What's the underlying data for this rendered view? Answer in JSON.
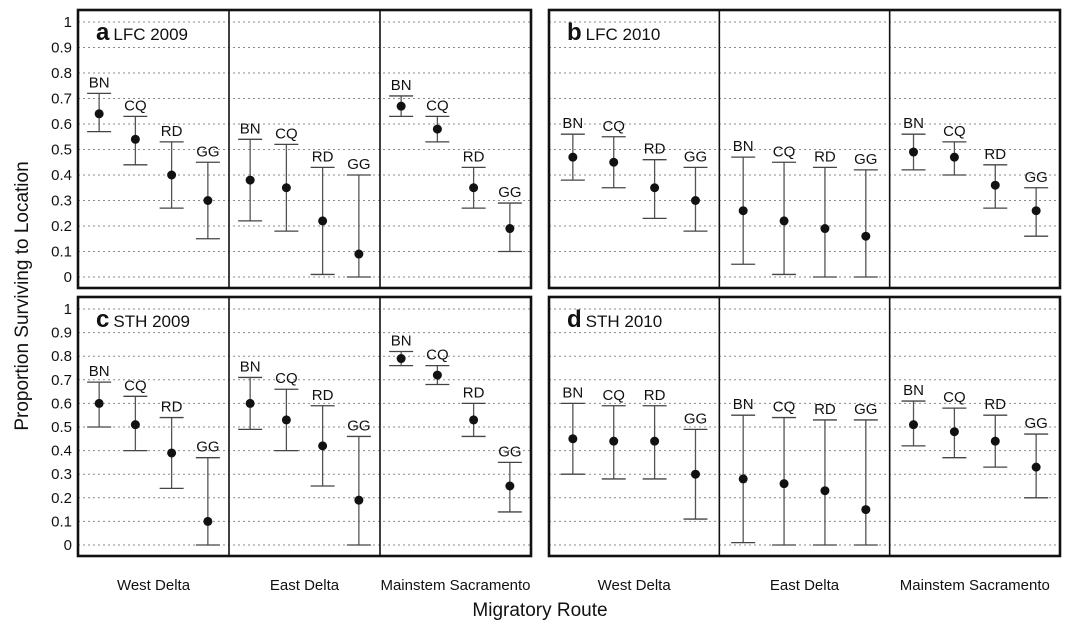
{
  "chart_data": {
    "type": "scatter",
    "xlabel": "Migratory Route",
    "ylabel": "Proportion Surviving to Location",
    "ylim": [
      0,
      1
    ],
    "yticks": [
      "0",
      "0.1",
      "0.2",
      "0.3",
      "0.4",
      "0.5",
      "0.6",
      "0.7",
      "0.8",
      "0.9",
      "1"
    ],
    "grid": true,
    "routes": [
      "West Delta",
      "East Delta",
      "Mainstem Sacramento"
    ],
    "sites": [
      "BN",
      "CQ",
      "RD",
      "GG"
    ],
    "panels": [
      {
        "letter": "a",
        "title": "LFC 2009",
        "series": [
          {
            "route": "West Delta",
            "points": [
              {
                "site": "BN",
                "estimate": 0.64,
                "lower": 0.57,
                "upper": 0.72
              },
              {
                "site": "CQ",
                "estimate": 0.54,
                "lower": 0.44,
                "upper": 0.63
              },
              {
                "site": "RD",
                "estimate": 0.4,
                "lower": 0.27,
                "upper": 0.53
              },
              {
                "site": "GG",
                "estimate": 0.3,
                "lower": 0.15,
                "upper": 0.45
              }
            ]
          },
          {
            "route": "East Delta",
            "points": [
              {
                "site": "BN",
                "estimate": 0.38,
                "lower": 0.22,
                "upper": 0.54
              },
              {
                "site": "CQ",
                "estimate": 0.35,
                "lower": 0.18,
                "upper": 0.52
              },
              {
                "site": "RD",
                "estimate": 0.22,
                "lower": 0.01,
                "upper": 0.43
              },
              {
                "site": "GG",
                "estimate": 0.09,
                "lower": 0.0,
                "upper": 0.4
              }
            ]
          },
          {
            "route": "Mainstem Sacramento",
            "points": [
              {
                "site": "BN",
                "estimate": 0.67,
                "lower": 0.63,
                "upper": 0.71
              },
              {
                "site": "CQ",
                "estimate": 0.58,
                "lower": 0.53,
                "upper": 0.63
              },
              {
                "site": "RD",
                "estimate": 0.35,
                "lower": 0.27,
                "upper": 0.43
              },
              {
                "site": "GG",
                "estimate": 0.19,
                "lower": 0.1,
                "upper": 0.29
              }
            ]
          }
        ]
      },
      {
        "letter": "b",
        "title": "LFC 2010",
        "series": [
          {
            "route": "West Delta",
            "points": [
              {
                "site": "BN",
                "estimate": 0.47,
                "lower": 0.38,
                "upper": 0.56
              },
              {
                "site": "CQ",
                "estimate": 0.45,
                "lower": 0.35,
                "upper": 0.55
              },
              {
                "site": "RD",
                "estimate": 0.35,
                "lower": 0.23,
                "upper": 0.46
              },
              {
                "site": "GG",
                "estimate": 0.3,
                "lower": 0.18,
                "upper": 0.43
              }
            ]
          },
          {
            "route": "East Delta",
            "points": [
              {
                "site": "BN",
                "estimate": 0.26,
                "lower": 0.05,
                "upper": 0.47
              },
              {
                "site": "CQ",
                "estimate": 0.22,
                "lower": 0.01,
                "upper": 0.45
              },
              {
                "site": "RD",
                "estimate": 0.19,
                "lower": 0.0,
                "upper": 0.43
              },
              {
                "site": "GG",
                "estimate": 0.16,
                "lower": 0.0,
                "upper": 0.42
              }
            ]
          },
          {
            "route": "Mainstem Sacramento",
            "points": [
              {
                "site": "BN",
                "estimate": 0.49,
                "lower": 0.42,
                "upper": 0.56
              },
              {
                "site": "CQ",
                "estimate": 0.47,
                "lower": 0.4,
                "upper": 0.53
              },
              {
                "site": "RD",
                "estimate": 0.36,
                "lower": 0.27,
                "upper": 0.44
              },
              {
                "site": "GG",
                "estimate": 0.26,
                "lower": 0.16,
                "upper": 0.35
              }
            ]
          }
        ]
      },
      {
        "letter": "c",
        "title": "STH 2009",
        "series": [
          {
            "route": "West Delta",
            "points": [
              {
                "site": "BN",
                "estimate": 0.6,
                "lower": 0.5,
                "upper": 0.69
              },
              {
                "site": "CQ",
                "estimate": 0.51,
                "lower": 0.4,
                "upper": 0.63
              },
              {
                "site": "RD",
                "estimate": 0.39,
                "lower": 0.24,
                "upper": 0.54
              },
              {
                "site": "GG",
                "estimate": 0.1,
                "lower": 0.0,
                "upper": 0.37
              }
            ]
          },
          {
            "route": "East Delta",
            "points": [
              {
                "site": "BN",
                "estimate": 0.6,
                "lower": 0.49,
                "upper": 0.71
              },
              {
                "site": "CQ",
                "estimate": 0.53,
                "lower": 0.4,
                "upper": 0.66
              },
              {
                "site": "RD",
                "estimate": 0.42,
                "lower": 0.25,
                "upper": 0.59
              },
              {
                "site": "GG",
                "estimate": 0.19,
                "lower": 0.0,
                "upper": 0.46
              }
            ]
          },
          {
            "route": "Mainstem Sacramento",
            "points": [
              {
                "site": "BN",
                "estimate": 0.79,
                "lower": 0.76,
                "upper": 0.82
              },
              {
                "site": "CQ",
                "estimate": 0.72,
                "lower": 0.68,
                "upper": 0.76
              },
              {
                "site": "RD",
                "estimate": 0.53,
                "lower": 0.46,
                "upper": 0.6
              },
              {
                "site": "GG",
                "estimate": 0.25,
                "lower": 0.14,
                "upper": 0.35
              }
            ]
          }
        ]
      },
      {
        "letter": "d",
        "title": "STH 2010",
        "series": [
          {
            "route": "West Delta",
            "points": [
              {
                "site": "BN",
                "estimate": 0.45,
                "lower": 0.3,
                "upper": 0.6
              },
              {
                "site": "CQ",
                "estimate": 0.44,
                "lower": 0.28,
                "upper": 0.59
              },
              {
                "site": "RD",
                "estimate": 0.44,
                "lower": 0.28,
                "upper": 0.59
              },
              {
                "site": "GG",
                "estimate": 0.3,
                "lower": 0.11,
                "upper": 0.49
              }
            ]
          },
          {
            "route": "East Delta",
            "points": [
              {
                "site": "BN",
                "estimate": 0.28,
                "lower": 0.01,
                "upper": 0.55
              },
              {
                "site": "CQ",
                "estimate": 0.26,
                "lower": 0.0,
                "upper": 0.54
              },
              {
                "site": "RD",
                "estimate": 0.23,
                "lower": 0.0,
                "upper": 0.53
              },
              {
                "site": "GG",
                "estimate": 0.15,
                "lower": 0.0,
                "upper": 0.53
              }
            ]
          },
          {
            "route": "Mainstem Sacramento",
            "points": [
              {
                "site": "BN",
                "estimate": 0.51,
                "lower": 0.42,
                "upper": 0.61
              },
              {
                "site": "CQ",
                "estimate": 0.48,
                "lower": 0.37,
                "upper": 0.58
              },
              {
                "site": "RD",
                "estimate": 0.44,
                "lower": 0.33,
                "upper": 0.55
              },
              {
                "site": "GG",
                "estimate": 0.33,
                "lower": 0.2,
                "upper": 0.47
              }
            ]
          }
        ]
      }
    ]
  }
}
